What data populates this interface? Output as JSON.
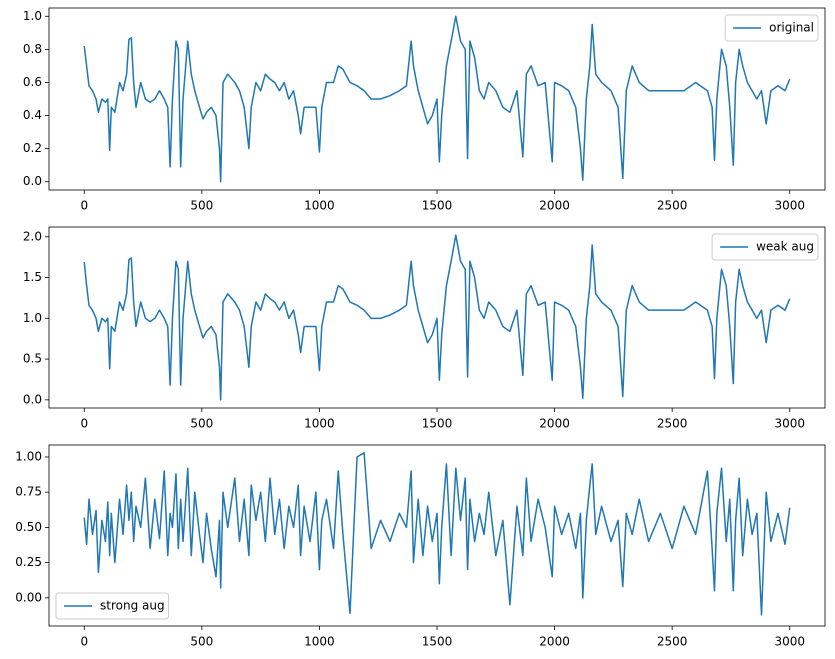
{
  "chart_data": [
    {
      "type": "line",
      "legend": "upper right",
      "xlim": [
        -150,
        3150
      ],
      "xticks": [
        0,
        500,
        1000,
        1500,
        2000,
        2500,
        3000
      ],
      "ylim": [
        -0.05,
        1.05
      ],
      "yticks": [
        {
          "value": 0,
          "label": "0.0"
        },
        {
          "value": 0.2,
          "label": "0.2"
        },
        {
          "value": 0.4,
          "label": "0.4"
        },
        {
          "value": 0.6,
          "label": "0.6"
        },
        {
          "value": 0.8,
          "label": "0.8"
        },
        {
          "value": 1,
          "label": "1.0"
        }
      ],
      "x": [
        0,
        10,
        20,
        35,
        50,
        60,
        75,
        90,
        100,
        108,
        115,
        130,
        150,
        165,
        180,
        190,
        200,
        210,
        220,
        240,
        260,
        280,
        300,
        320,
        340,
        355,
        365,
        375,
        390,
        400,
        410,
        420,
        440,
        455,
        470,
        490,
        505,
        520,
        540,
        560,
        575,
        580,
        590,
        610,
        640,
        660,
        680,
        700,
        710,
        730,
        750,
        770,
        790,
        810,
        830,
        850,
        870,
        890,
        910,
        920,
        935,
        960,
        985,
        1000,
        1010,
        1030,
        1060,
        1080,
        1100,
        1130,
        1160,
        1190,
        1220,
        1260,
        1300,
        1340,
        1370,
        1390,
        1400,
        1420,
        1440,
        1460,
        1480,
        1500,
        1510,
        1520,
        1540,
        1560,
        1580,
        1600,
        1620,
        1630,
        1640,
        1660,
        1680,
        1700,
        1720,
        1750,
        1780,
        1810,
        1840,
        1865,
        1880,
        1900,
        1930,
        1960,
        1990,
        2000,
        2030,
        2060,
        2090,
        2110,
        2120,
        2135,
        2150,
        2160,
        2175,
        2200,
        2240,
        2270,
        2290,
        2305,
        2330,
        2360,
        2400,
        2450,
        2500,
        2550,
        2600,
        2650,
        2670,
        2680,
        2690,
        2710,
        2730,
        2745,
        2760,
        2770,
        2785,
        2800,
        2820,
        2840,
        2860,
        2880,
        2900,
        2920,
        2950,
        2980,
        3000
      ],
      "series": [
        {
          "name": "original",
          "color": "#1f77b4",
          "values": [
            0.82,
            0.7,
            0.58,
            0.55,
            0.5,
            0.42,
            0.5,
            0.48,
            0.5,
            0.19,
            0.45,
            0.42,
            0.6,
            0.55,
            0.65,
            0.86,
            0.87,
            0.6,
            0.45,
            0.6,
            0.5,
            0.48,
            0.5,
            0.55,
            0.5,
            0.45,
            0.09,
            0.5,
            0.85,
            0.8,
            0.09,
            0.5,
            0.85,
            0.65,
            0.55,
            0.45,
            0.38,
            0.42,
            0.45,
            0.4,
            0.2,
            0,
            0.6,
            0.65,
            0.6,
            0.55,
            0.45,
            0.2,
            0.45,
            0.6,
            0.55,
            0.65,
            0.62,
            0.6,
            0.55,
            0.6,
            0.5,
            0.55,
            0.4,
            0.29,
            0.45,
            0.45,
            0.45,
            0.18,
            0.45,
            0.6,
            0.6,
            0.7,
            0.68,
            0.6,
            0.58,
            0.55,
            0.5,
            0.5,
            0.52,
            0.55,
            0.58,
            0.85,
            0.7,
            0.55,
            0.45,
            0.35,
            0.4,
            0.5,
            0.12,
            0.4,
            0.7,
            0.85,
            1.0,
            0.85,
            0.8,
            0.14,
            0.85,
            0.75,
            0.55,
            0.5,
            0.6,
            0.55,
            0.45,
            0.42,
            0.55,
            0.15,
            0.65,
            0.7,
            0.58,
            0.6,
            0.12,
            0.6,
            0.58,
            0.55,
            0.45,
            0.2,
            0.01,
            0.5,
            0.7,
            0.95,
            0.65,
            0.6,
            0.55,
            0.45,
            0.02,
            0.55,
            0.7,
            0.6,
            0.55,
            0.55,
            0.55,
            0.55,
            0.6,
            0.55,
            0.45,
            0.13,
            0.5,
            0.8,
            0.7,
            0.45,
            0.1,
            0.6,
            0.8,
            0.7,
            0.6,
            0.55,
            0.5,
            0.55,
            0.35,
            0.55,
            0.58,
            0.55,
            0.62
          ]
        }
      ]
    },
    {
      "type": "line",
      "legend": "upper right",
      "xlim": [
        -150,
        3150
      ],
      "xticks": [
        0,
        500,
        1000,
        1500,
        2000,
        2500,
        3000
      ],
      "ylim": [
        -0.1,
        2.12
      ],
      "yticks": [
        {
          "value": 0,
          "label": "0.0"
        },
        {
          "value": 0.5,
          "label": "0.5"
        },
        {
          "value": 1,
          "label": "1.0"
        },
        {
          "value": 1.5,
          "label": "1.5"
        },
        {
          "value": 2,
          "label": "2.0"
        }
      ],
      "x": [
        0,
        10,
        20,
        35,
        50,
        60,
        75,
        90,
        100,
        108,
        115,
        130,
        150,
        165,
        180,
        190,
        200,
        210,
        220,
        240,
        260,
        280,
        300,
        320,
        340,
        355,
        365,
        375,
        390,
        400,
        410,
        420,
        440,
        455,
        470,
        490,
        505,
        520,
        540,
        560,
        575,
        580,
        590,
        610,
        640,
        660,
        680,
        700,
        710,
        730,
        750,
        770,
        790,
        810,
        830,
        850,
        870,
        890,
        910,
        920,
        935,
        960,
        985,
        1000,
        1010,
        1030,
        1060,
        1080,
        1100,
        1130,
        1160,
        1190,
        1220,
        1260,
        1300,
        1340,
        1370,
        1390,
        1400,
        1420,
        1440,
        1460,
        1480,
        1500,
        1510,
        1520,
        1540,
        1560,
        1580,
        1600,
        1620,
        1630,
        1640,
        1660,
        1680,
        1700,
        1720,
        1750,
        1780,
        1810,
        1840,
        1865,
        1880,
        1900,
        1930,
        1960,
        1990,
        2000,
        2030,
        2060,
        2090,
        2110,
        2120,
        2135,
        2150,
        2160,
        2175,
        2200,
        2240,
        2270,
        2290,
        2305,
        2330,
        2360,
        2400,
        2450,
        2500,
        2550,
        2600,
        2650,
        2670,
        2680,
        2690,
        2710,
        2730,
        2745,
        2760,
        2770,
        2785,
        2800,
        2820,
        2840,
        2860,
        2880,
        2900,
        2920,
        2950,
        2980,
        3000
      ],
      "series": [
        {
          "name": "weak aug",
          "color": "#1f77b4",
          "values": [
            1.69,
            1.4,
            1.16,
            1.1,
            1.0,
            0.84,
            1.0,
            0.96,
            1.0,
            0.38,
            0.9,
            0.84,
            1.2,
            1.1,
            1.3,
            1.72,
            1.74,
            1.2,
            0.9,
            1.2,
            1.0,
            0.96,
            1.0,
            1.1,
            1.0,
            0.9,
            0.18,
            1.0,
            1.7,
            1.6,
            0.18,
            1.0,
            1.7,
            1.3,
            1.1,
            0.9,
            0.76,
            0.84,
            0.9,
            0.8,
            0.4,
            0,
            1.2,
            1.3,
            1.2,
            1.1,
            0.9,
            0.4,
            0.9,
            1.2,
            1.1,
            1.3,
            1.24,
            1.2,
            1.1,
            1.2,
            1.0,
            1.1,
            0.8,
            0.58,
            0.9,
            0.9,
            0.9,
            0.36,
            0.9,
            1.2,
            1.2,
            1.4,
            1.36,
            1.2,
            1.16,
            1.1,
            1.0,
            1.0,
            1.04,
            1.1,
            1.16,
            1.7,
            1.4,
            1.1,
            0.9,
            0.7,
            0.8,
            1.0,
            0.24,
            0.8,
            1.4,
            1.7,
            2.02,
            1.7,
            1.6,
            0.28,
            1.7,
            1.5,
            1.1,
            1.0,
            1.2,
            1.1,
            0.9,
            0.84,
            1.1,
            0.3,
            1.3,
            1.4,
            1.16,
            1.2,
            0.24,
            1.2,
            1.16,
            1.1,
            0.9,
            0.4,
            0.02,
            1.0,
            1.4,
            1.9,
            1.3,
            1.2,
            1.1,
            0.9,
            0.04,
            1.1,
            1.4,
            1.2,
            1.1,
            1.1,
            1.1,
            1.1,
            1.2,
            1.1,
            0.9,
            0.26,
            1.0,
            1.6,
            1.4,
            0.9,
            0.2,
            1.2,
            1.6,
            1.4,
            1.2,
            1.1,
            1.0,
            1.1,
            0.7,
            1.1,
            1.16,
            1.1,
            1.24
          ]
        }
      ]
    },
    {
      "type": "line",
      "legend": "lower left",
      "xlim": [
        -150,
        3150
      ],
      "xticks": [
        0,
        500,
        1000,
        1500,
        2000,
        2500,
        3000
      ],
      "ylim": [
        -0.2,
        1.085
      ],
      "yticks": [
        {
          "value": 0,
          "label": "0.00"
        },
        {
          "value": 0.25,
          "label": "0.25"
        },
        {
          "value": 0.5,
          "label": "0.50"
        },
        {
          "value": 0.75,
          "label": "0.75"
        },
        {
          "value": 1,
          "label": "1.00"
        }
      ],
      "x": [
        0,
        10,
        20,
        35,
        50,
        60,
        75,
        90,
        100,
        108,
        115,
        130,
        150,
        165,
        180,
        190,
        200,
        210,
        220,
        240,
        260,
        280,
        300,
        320,
        340,
        355,
        365,
        375,
        390,
        400,
        410,
        420,
        440,
        455,
        470,
        490,
        505,
        520,
        540,
        560,
        575,
        580,
        590,
        610,
        640,
        660,
        680,
        700,
        710,
        730,
        750,
        770,
        790,
        810,
        830,
        850,
        870,
        890,
        910,
        920,
        935,
        960,
        985,
        1000,
        1010,
        1030,
        1060,
        1080,
        1100,
        1130,
        1160,
        1190,
        1220,
        1260,
        1300,
        1340,
        1370,
        1390,
        1400,
        1420,
        1440,
        1460,
        1480,
        1500,
        1510,
        1520,
        1540,
        1560,
        1580,
        1600,
        1620,
        1630,
        1640,
        1660,
        1680,
        1700,
        1720,
        1750,
        1780,
        1810,
        1840,
        1865,
        1880,
        1900,
        1930,
        1960,
        1990,
        2000,
        2030,
        2060,
        2090,
        2110,
        2120,
        2135,
        2150,
        2160,
        2175,
        2200,
        2240,
        2270,
        2290,
        2305,
        2330,
        2360,
        2400,
        2450,
        2500,
        2550,
        2600,
        2650,
        2670,
        2680,
        2690,
        2710,
        2730,
        2745,
        2760,
        2770,
        2785,
        2800,
        2820,
        2840,
        2860,
        2880,
        2900,
        2920,
        2950,
        2980,
        3000
      ],
      "series": [
        {
          "name": "strong aug",
          "color": "#1f77b4",
          "values": [
            0.57,
            0.38,
            0.7,
            0.45,
            0.62,
            0.18,
            0.55,
            0.4,
            0.68,
            0.3,
            0.6,
            0.25,
            0.7,
            0.45,
            0.8,
            0.55,
            0.75,
            0.4,
            0.65,
            0.5,
            0.85,
            0.35,
            0.7,
            0.42,
            0.9,
            0.3,
            0.6,
            0.5,
            0.88,
            0.35,
            0.7,
            0.4,
            0.92,
            0.3,
            0.75,
            0.45,
            0.25,
            0.6,
            0.35,
            0.15,
            0.55,
            0.07,
            0.75,
            0.5,
            0.85,
            0.4,
            0.7,
            0.3,
            0.8,
            0.55,
            0.75,
            0.4,
            0.85,
            0.45,
            0.7,
            0.35,
            0.65,
            0.5,
            0.8,
            0.3,
            0.65,
            0.4,
            0.75,
            0.2,
            0.55,
            0.7,
            0.35,
            0.9,
            0.45,
            -0.11,
            1.0,
            1.03,
            0.35,
            0.55,
            0.4,
            0.6,
            0.5,
            0.9,
            0.25,
            0.7,
            0.3,
            0.65,
            0.4,
            0.6,
            0.1,
            0.5,
            0.95,
            0.3,
            0.92,
            0.55,
            0.85,
            0.2,
            0.7,
            0.4,
            0.6,
            0.45,
            0.75,
            0.3,
            0.55,
            -0.05,
            0.65,
            0.3,
            0.85,
            0.4,
            0.7,
            0.5,
            0.15,
            0.65,
            0.45,
            0.6,
            0.35,
            0.6,
            0.0,
            0.55,
            0.8,
            0.95,
            0.45,
            0.65,
            0.4,
            0.55,
            0.08,
            0.6,
            0.45,
            0.7,
            0.4,
            0.6,
            0.35,
            0.65,
            0.45,
            0.9,
            0.35,
            0.05,
            0.6,
            0.92,
            0.4,
            0.7,
            0.05,
            0.55,
            0.85,
            0.3,
            0.7,
            0.45,
            0.6,
            -0.12,
            0.75,
            0.4,
            0.6,
            0.38,
            0.64
          ]
        }
      ]
    }
  ]
}
